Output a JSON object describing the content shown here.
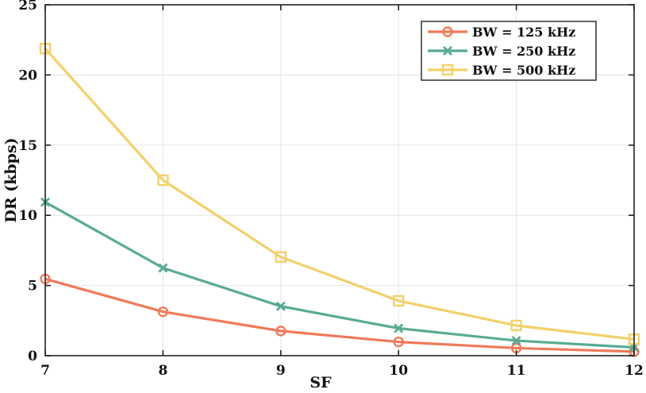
{
  "chart_data": {
    "type": "line",
    "title": "",
    "xlabel": "SF",
    "ylabel": "DR (kbps)",
    "x": [
      7,
      8,
      9,
      10,
      11,
      12
    ],
    "xticks": [
      "7",
      "8",
      "9",
      "10",
      "11",
      "12"
    ],
    "yticks": [
      "0",
      "5",
      "10",
      "15",
      "20",
      "25"
    ],
    "xlim": [
      7,
      12
    ],
    "ylim": [
      0,
      25
    ],
    "grid": true,
    "legend_position": "top-right",
    "series": [
      {
        "name": "BW = 125 kHz",
        "color": "#f07a5a",
        "marker": "circle",
        "values": [
          5.47,
          3.13,
          1.76,
          0.98,
          0.54,
          0.29
        ]
      },
      {
        "name": "BW = 250 kHz",
        "color": "#5aaa95",
        "marker": "x",
        "values": [
          10.94,
          6.25,
          3.52,
          1.95,
          1.07,
          0.59
        ]
      },
      {
        "name": "BW = 500 kHz",
        "color": "#f2d06b",
        "marker": "square",
        "values": [
          21.88,
          12.5,
          7.03,
          3.91,
          2.15,
          1.17
        ]
      }
    ]
  }
}
